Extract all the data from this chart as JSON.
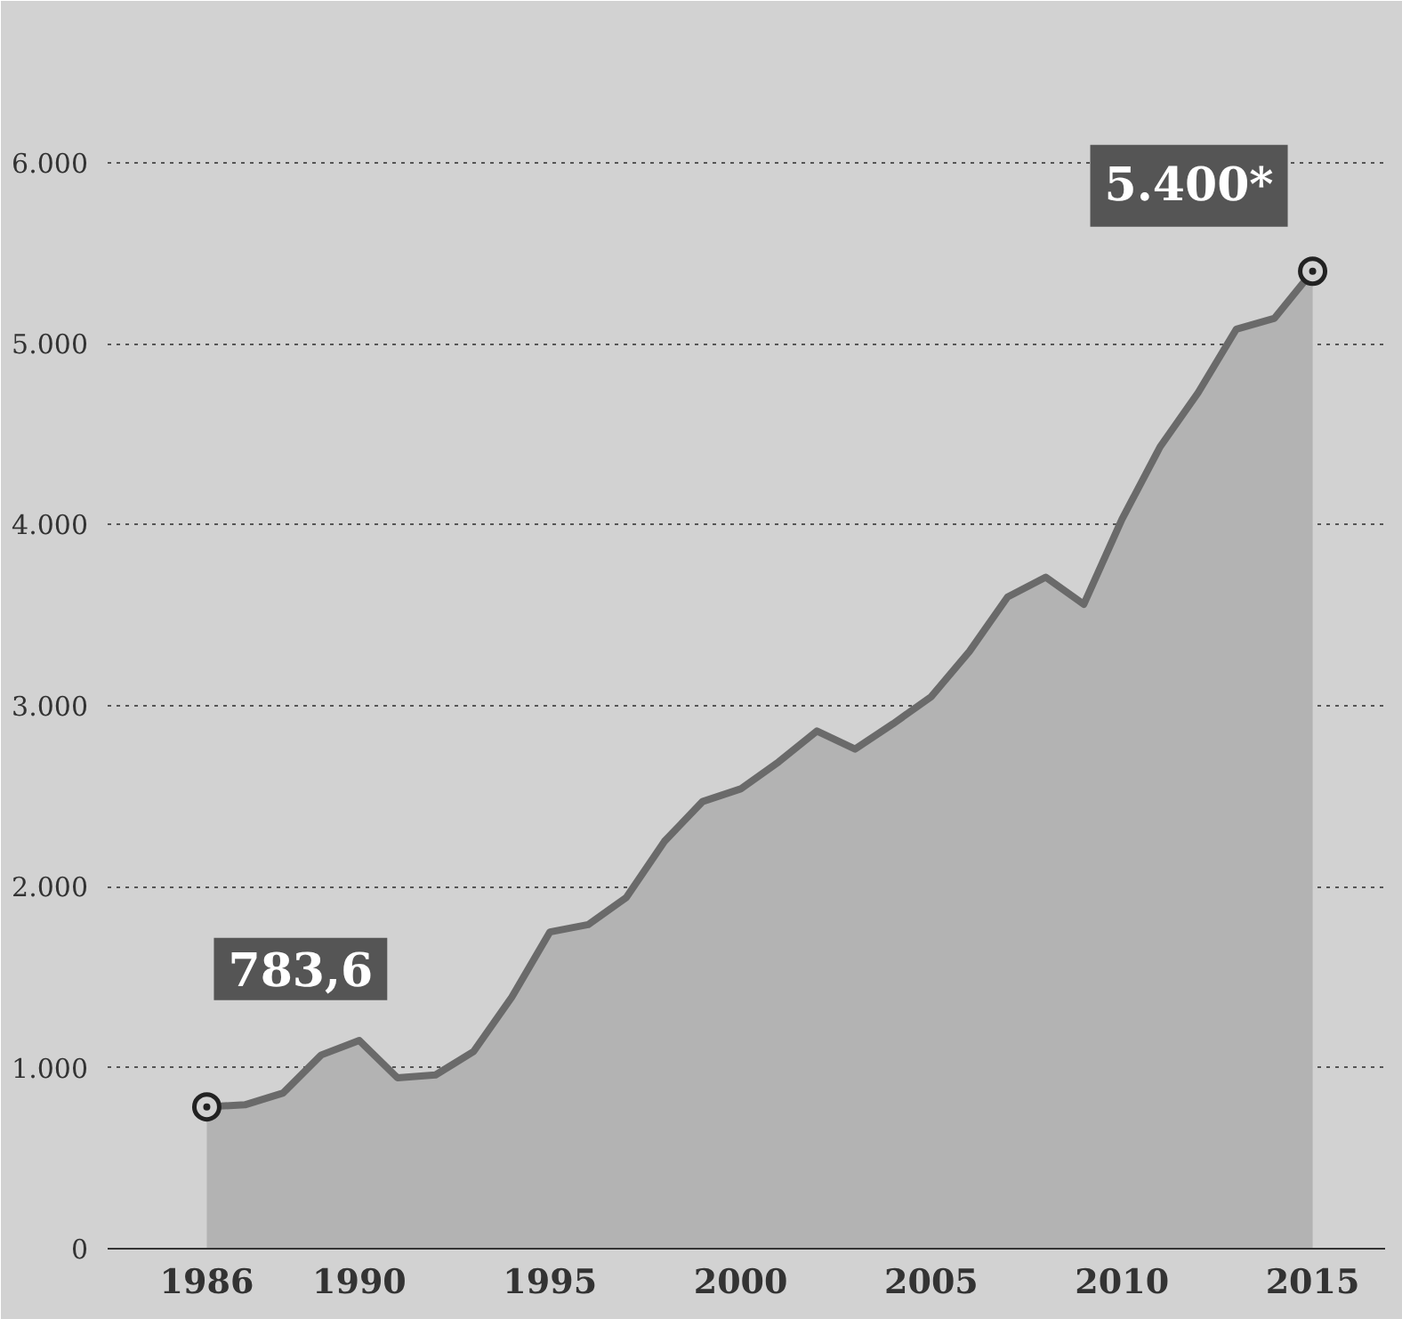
{
  "chart_data": {
    "type": "area",
    "x": [
      1986,
      1987,
      1988,
      1989,
      1990,
      1991,
      1992,
      1993,
      1994,
      1995,
      1996,
      1997,
      1998,
      1999,
      2000,
      2001,
      2002,
      2003,
      2004,
      2005,
      2006,
      2007,
      2008,
      2009,
      2010,
      2011,
      2012,
      2013,
      2014,
      2015
    ],
    "series": [
      {
        "color": "#6a6a6a",
        "values": [
          783.6,
          795,
          860,
          1070,
          1150,
          944,
          960,
          1090,
          1390,
          1750,
          1790,
          1940,
          2250,
          2470,
          2540,
          2690,
          2860,
          2760,
          2900,
          3050,
          3300,
          3600,
          3710,
          3560,
          4030,
          4430,
          4730,
          5080,
          5140,
          5400
        ]
      }
    ],
    "xlim": [
      1983.4,
      2016.9
    ],
    "ylim": [
      0,
      6500
    ],
    "xticks": [
      1986,
      1990,
      1995,
      2000,
      2005,
      2010,
      2015
    ],
    "yticks": [
      {
        "value": 0,
        "label": "0"
      },
      {
        "value": 1000,
        "label": "1.000"
      },
      {
        "value": 2000,
        "label": "2.000"
      },
      {
        "value": 3000,
        "label": "3.000"
      },
      {
        "value": 4000,
        "label": "4.000"
      },
      {
        "value": 5000,
        "label": "5.000"
      },
      {
        "value": 6000,
        "label": "6.000"
      }
    ],
    "grid": "y",
    "annotations": [
      {
        "text": "783,6",
        "x": 1986,
        "y": 783.6
      },
      {
        "text": "5.400*",
        "x": 2015,
        "y": 5400
      }
    ]
  }
}
